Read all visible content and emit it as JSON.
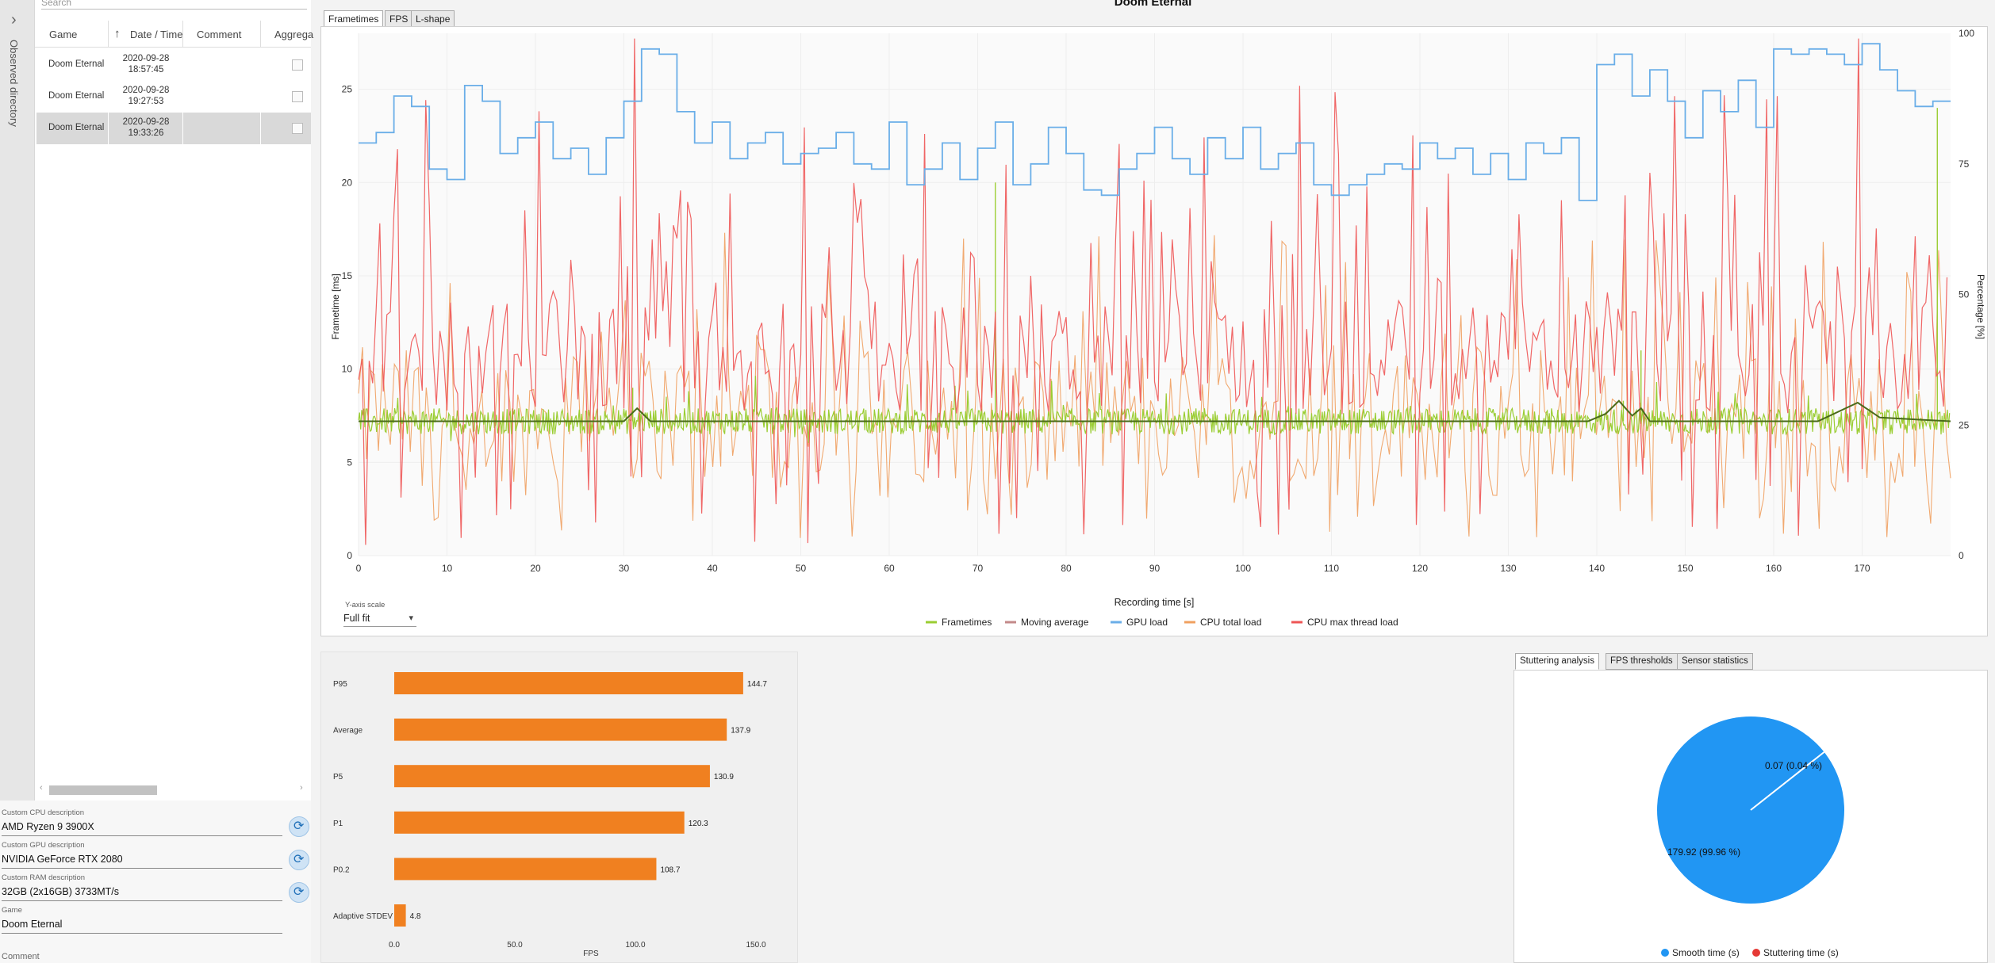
{
  "sidebar": {
    "toggle_icon": "chevron-right-icon",
    "observed_label": "Observed directory"
  },
  "records": {
    "search_placeholder": "Search",
    "columns": [
      "Game",
      "Date / Time",
      "Comment",
      "Aggrega"
    ],
    "rows": [
      {
        "game": "Doom Eternal",
        "date": "2020-09-28",
        "time": "18:57:45"
      },
      {
        "game": "Doom Eternal",
        "date": "2020-09-28",
        "time": "19:27:53"
      },
      {
        "game": "Doom Eternal",
        "date": "2020-09-28",
        "time": "19:33:26"
      }
    ]
  },
  "system": {
    "cpu_label": "Custom CPU description",
    "cpu": "AMD Ryzen 9 3900X",
    "gpu_label": "Custom GPU description",
    "gpu": "NVIDIA GeForce RTX 2080",
    "ram_label": "Custom RAM description",
    "ram": "32GB (2x16GB) 3733MT/s",
    "game_label": "Game",
    "game": "Doom Eternal",
    "comment_label": "Comment"
  },
  "main": {
    "title": "Doom Eternal",
    "tabs": [
      "Frametimes",
      "FPS",
      "L-shape"
    ],
    "yaxis_scale_label": "Y-axis scale",
    "yaxis_scale_value": "Full fit"
  },
  "colors": {
    "frametimes": "#9acd32",
    "moving": "#c38a8a",
    "gpu": "#6aaee8",
    "cpu_total": "#f0a060",
    "cpu_max": "#ee5555",
    "bar": "#f08020",
    "smooth": "#2196f3",
    "stutter": "#e53935"
  },
  "chart_data": [
    {
      "type": "line",
      "title": "Frametimes",
      "xlabel": "Recording time [s]",
      "ylabel": "Frametime [ms]",
      "y2label": "Percentage [%]",
      "xlim": [
        0,
        180
      ],
      "ylim": [
        0,
        28
      ],
      "y2lim": [
        0,
        100
      ],
      "x_ticks": [
        0,
        10,
        20,
        30,
        40,
        50,
        60,
        70,
        80,
        90,
        100,
        110,
        120,
        130,
        140,
        150,
        160,
        170
      ],
      "y_ticks": [
        0,
        5,
        10,
        15,
        20,
        25
      ],
      "y2_ticks": [
        0,
        25,
        50,
        75,
        100
      ],
      "legend": [
        "Frametimes",
        "Moving average",
        "GPU load",
        "CPU total load",
        "CPU max thread load"
      ],
      "series": [
        {
          "name": "Frametimes",
          "baseline": 7.2,
          "spikes": [
            [
              31,
              9
            ],
            [
              72,
              20
            ],
            [
              143,
              8.3
            ],
            [
              145,
              11
            ],
            [
              178.5,
              24
            ]
          ]
        },
        {
          "name": "Moving average",
          "x": [
            0,
            30,
            31.5,
            33,
            60,
            139,
            141,
            142.5,
            144,
            145,
            146,
            165,
            169.5,
            172,
            180
          ],
          "y": [
            7.2,
            7.2,
            7.9,
            7.2,
            7.2,
            7.2,
            7.6,
            8.3,
            7.5,
            7.9,
            7.2,
            7.2,
            8.2,
            7.4,
            7.2
          ]
        },
        {
          "name": "GPU load",
          "x": [
            0,
            2,
            4,
            6,
            8,
            10,
            12,
            14,
            16,
            18,
            20,
            22,
            24,
            26,
            28,
            30,
            32,
            34,
            36,
            38,
            40,
            42,
            44,
            46,
            48,
            50,
            52,
            54,
            56,
            58,
            60,
            62,
            64,
            66,
            68,
            70,
            72,
            74,
            76,
            78,
            80,
            82,
            84,
            86,
            88,
            90,
            92,
            94,
            96,
            98,
            100,
            102,
            104,
            106,
            108,
            110,
            112,
            114,
            116,
            118,
            120,
            122,
            124,
            126,
            128,
            130,
            132,
            134,
            136,
            138,
            140,
            142,
            144,
            146,
            148,
            150,
            152,
            154,
            156,
            158,
            160,
            162,
            164,
            166,
            168,
            170,
            172,
            174,
            176,
            178,
            180
          ],
          "y": [
            79,
            81,
            88,
            86,
            74,
            72,
            90,
            87,
            77,
            80,
            83,
            76,
            78,
            73,
            80,
            87,
            97,
            96,
            85,
            79,
            83,
            76,
            79,
            81,
            75,
            77,
            78,
            81,
            75,
            74,
            83,
            71,
            74,
            79,
            72,
            78,
            83,
            71,
            75,
            82,
            77,
            70,
            69,
            74,
            77,
            82,
            76,
            73,
            80,
            76,
            82,
            74,
            77,
            79,
            71,
            69,
            71,
            73,
            75,
            74,
            79,
            76,
            78,
            73,
            77,
            72,
            79,
            77,
            80,
            68,
            94,
            96,
            88,
            93,
            87,
            80,
            89,
            85,
            91,
            82,
            97,
            96,
            97,
            96,
            94,
            98,
            93,
            89,
            86,
            87,
            87
          ]
        },
        {
          "name": "CPU total load",
          "range": [
            3,
            62
          ],
          "typical": 27
        },
        {
          "name": "CPU max thread load",
          "range": [
            2,
            99
          ],
          "typical": 38
        }
      ]
    },
    {
      "type": "bar",
      "orientation": "horizontal",
      "xlabel": "FPS",
      "xlim": [
        0,
        150
      ],
      "x_ticks": [
        0.0,
        50.0,
        100.0,
        150.0
      ],
      "categories": [
        "P95",
        "Average",
        "P5",
        "P1",
        "P0.2",
        "Adaptive STDEV"
      ],
      "values": [
        144.7,
        137.9,
        130.9,
        120.3,
        108.7,
        4.8
      ]
    },
    {
      "type": "pie",
      "tabs": [
        "Stuttering analysis",
        "FPS thresholds",
        "Sensor statistics"
      ],
      "labels": [
        "Smooth time (s)",
        "Stuttering time (s)"
      ],
      "values": [
        179.92,
        0.07
      ],
      "percents": [
        99.96,
        0.04
      ],
      "slice_labels": [
        "179.92 (99.96 %)",
        "0.07 (0.04 %)"
      ]
    }
  ]
}
